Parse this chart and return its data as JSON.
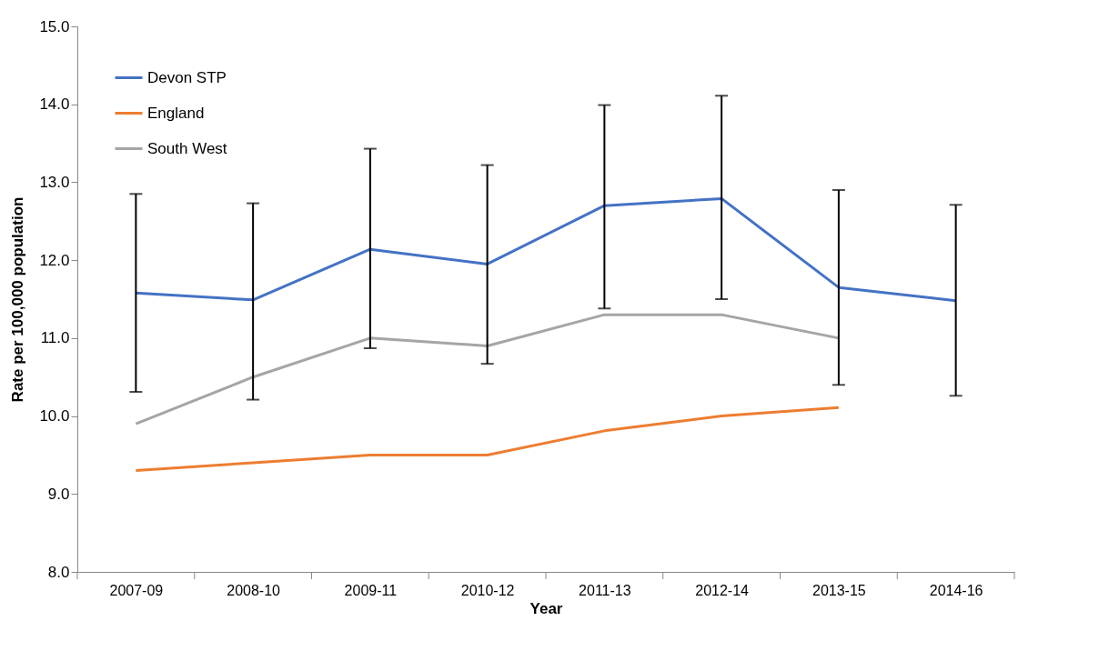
{
  "chart_data": {
    "type": "line",
    "xlabel": "Year",
    "ylabel": "Rate per 100,000 population",
    "categories": [
      "2007-09",
      "2008-10",
      "2009-11",
      "2010-12",
      "2011-13",
      "2012-14",
      "2013-15",
      "2014-16"
    ],
    "series": [
      {
        "name": "Devon STP",
        "color": "#4472c4",
        "values": [
          11.58,
          11.49,
          12.14,
          11.95,
          12.7,
          12.79,
          11.65,
          11.48
        ],
        "errors": [
          [
            10.31,
            12.85
          ],
          [
            10.21,
            12.73
          ],
          [
            10.87,
            13.43
          ],
          [
            10.67,
            13.22
          ],
          [
            11.38,
            13.99
          ],
          [
            11.5,
            14.11
          ],
          [
            10.4,
            12.9
          ],
          [
            10.26,
            12.71
          ]
        ]
      },
      {
        "name": "England",
        "color": "#ed7d31",
        "values": [
          9.3,
          9.4,
          9.5,
          9.5,
          9.81,
          10.0,
          10.11,
          null
        ]
      },
      {
        "name": "South West",
        "color": "#a5a5a5",
        "values": [
          9.9,
          10.5,
          11.0,
          10.9,
          11.3,
          11.3,
          11.0,
          null
        ]
      }
    ],
    "ylim": [
      8.0,
      15.0
    ],
    "yticks": [
      {
        "value": 8,
        "label": "8.0"
      },
      {
        "value": 9,
        "label": "9.0"
      },
      {
        "value": 10,
        "label": "10.0"
      },
      {
        "value": 11,
        "label": "11.0"
      },
      {
        "value": 12,
        "label": "12.0"
      },
      {
        "value": 13,
        "label": "13.0"
      },
      {
        "value": 14,
        "label": "14.0"
      },
      {
        "value": 15,
        "label": "15.0"
      }
    ],
    "grid": false,
    "legend": "top left",
    "marker": "none",
    "line_style": "solid"
  }
}
